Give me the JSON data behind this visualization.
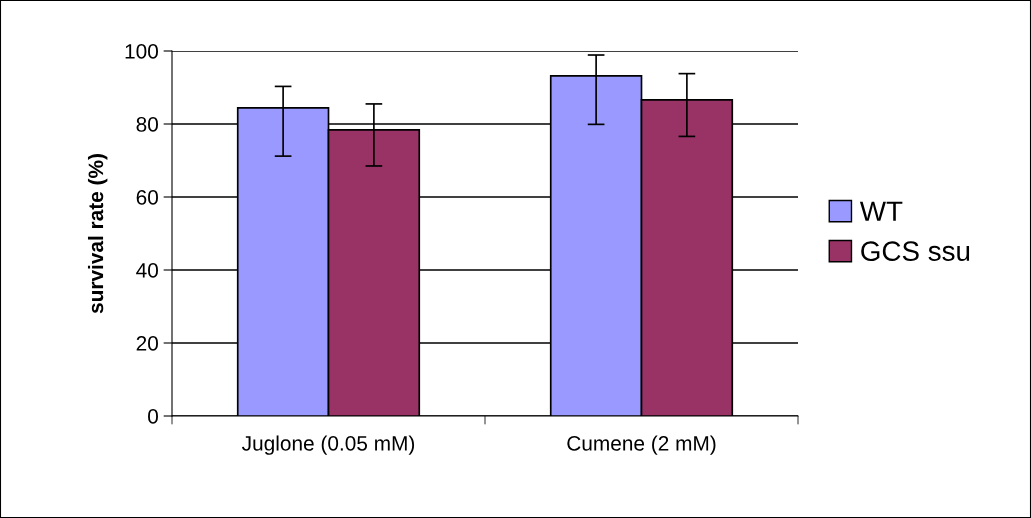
{
  "chart_data": {
    "type": "bar",
    "ylabel": "survival rate (%)",
    "categories": [
      "Juglone (0.05 mM)",
      "Cumene (2 mM)"
    ],
    "series": [
      {
        "name": "WT",
        "color": "#9999ff",
        "values": [
          84.4,
          93.2
        ],
        "errors": [
          [
            71.2,
            90.3
          ],
          [
            79.9,
            98.9
          ]
        ]
      },
      {
        "name": "GCS ssu",
        "color": "#993366",
        "values": [
          78.4,
          86.6
        ],
        "errors": [
          [
            68.5,
            85.5
          ],
          [
            76.6,
            93.8
          ]
        ]
      }
    ],
    "ylim": [
      0,
      100
    ],
    "yticks": [
      0,
      20,
      40,
      60,
      80,
      100
    ],
    "grid": "y",
    "legend": "right"
  }
}
